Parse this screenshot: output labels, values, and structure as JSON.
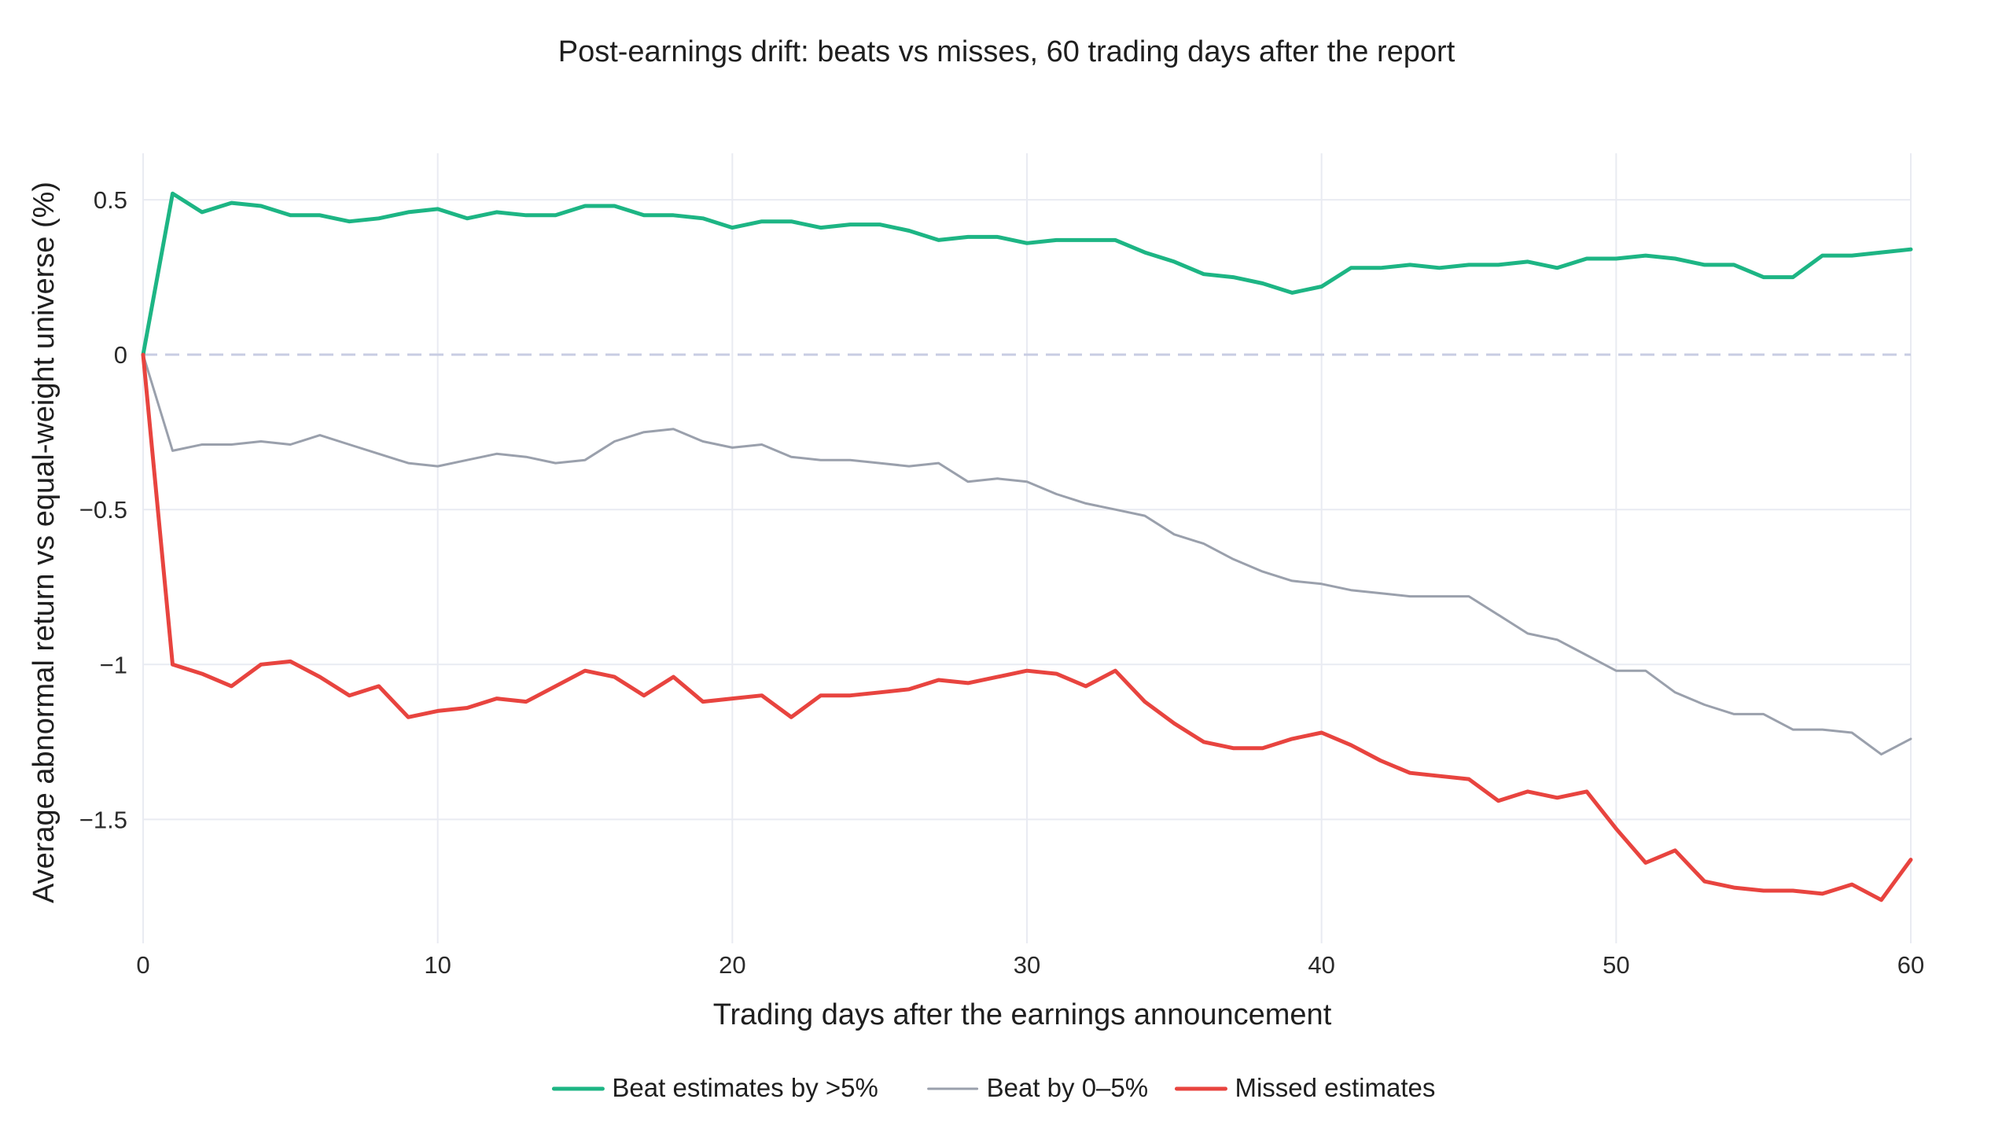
{
  "chart_data": {
    "type": "line",
    "title": "Post-earnings drift: beats vs misses, 60 trading days after the report",
    "xlabel": "Trading days after the earnings announcement",
    "ylabel": "Average abnormal return vs equal-weight universe (%)",
    "xlim": [
      0,
      60
    ],
    "ylim": [
      -1.9,
      0.65
    ],
    "x_ticks": [
      0,
      10,
      20,
      30,
      40,
      50,
      60
    ],
    "x_tick_labels": [
      "0",
      "10",
      "20",
      "30",
      "40",
      "50",
      "60"
    ],
    "y_ticks": [
      0.5,
      0,
      -0.5,
      -1,
      -1.5
    ],
    "y_tick_labels": [
      "0.5",
      "0",
      "−0.5",
      "−1",
      "−1.5"
    ],
    "grid": true,
    "zero_line": "dashed",
    "legend_position": "bottom-center",
    "x": [
      0,
      1,
      2,
      3,
      4,
      5,
      6,
      7,
      8,
      9,
      10,
      11,
      12,
      13,
      14,
      15,
      16,
      17,
      18,
      19,
      20,
      21,
      22,
      23,
      24,
      25,
      26,
      27,
      28,
      29,
      30,
      31,
      32,
      33,
      34,
      35,
      36,
      37,
      38,
      39,
      40,
      41,
      42,
      43,
      44,
      45,
      46,
      47,
      48,
      49,
      50,
      51,
      52,
      53,
      54,
      55,
      56,
      57,
      58,
      59,
      60
    ],
    "series": [
      {
        "name": "Beat estimates by >5%",
        "color": "#1db584",
        "values": [
          0,
          0.52,
          0.46,
          0.49,
          0.48,
          0.45,
          0.45,
          0.43,
          0.44,
          0.46,
          0.47,
          0.44,
          0.46,
          0.45,
          0.45,
          0.48,
          0.48,
          0.45,
          0.45,
          0.44,
          0.41,
          0.43,
          0.43,
          0.41,
          0.42,
          0.42,
          0.4,
          0.37,
          0.38,
          0.38,
          0.36,
          0.37,
          0.37,
          0.37,
          0.33,
          0.3,
          0.26,
          0.25,
          0.23,
          0.2,
          0.22,
          0.28,
          0.28,
          0.29,
          0.28,
          0.29,
          0.29,
          0.3,
          0.28,
          0.31,
          0.31,
          0.32,
          0.31,
          0.29,
          0.29,
          0.25,
          0.25,
          0.32,
          0.32,
          0.33,
          0.34
        ]
      },
      {
        "name": "Beat by 0–5%",
        "color": "#9aa0ac",
        "values": [
          0,
          -0.31,
          -0.29,
          -0.29,
          -0.28,
          -0.29,
          -0.26,
          -0.29,
          -0.32,
          -0.35,
          -0.36,
          -0.34,
          -0.32,
          -0.33,
          -0.35,
          -0.34,
          -0.28,
          -0.25,
          -0.24,
          -0.28,
          -0.3,
          -0.29,
          -0.33,
          -0.34,
          -0.34,
          -0.35,
          -0.36,
          -0.35,
          -0.41,
          -0.4,
          -0.41,
          -0.45,
          -0.48,
          -0.5,
          -0.52,
          -0.58,
          -0.61,
          -0.66,
          -0.7,
          -0.73,
          -0.74,
          -0.76,
          -0.77,
          -0.78,
          -0.78,
          -0.78,
          -0.84,
          -0.9,
          -0.92,
          -0.97,
          -1.02,
          -1.02,
          -1.09,
          -1.13,
          -1.16,
          -1.16,
          -1.21,
          -1.21,
          -1.22,
          -1.29,
          -1.24
        ]
      },
      {
        "name": "Missed estimates",
        "color": "#e8443f",
        "values": [
          0,
          -1.0,
          -1.03,
          -1.07,
          -1.0,
          -0.99,
          -1.04,
          -1.1,
          -1.07,
          -1.17,
          -1.15,
          -1.14,
          -1.11,
          -1.12,
          -1.07,
          -1.02,
          -1.04,
          -1.1,
          -1.04,
          -1.12,
          -1.11,
          -1.1,
          -1.17,
          -1.1,
          -1.1,
          -1.09,
          -1.08,
          -1.05,
          -1.06,
          -1.04,
          -1.02,
          -1.03,
          -1.07,
          -1.02,
          -1.12,
          -1.19,
          -1.25,
          -1.27,
          -1.27,
          -1.24,
          -1.22,
          -1.26,
          -1.31,
          -1.35,
          -1.36,
          -1.37,
          -1.44,
          -1.41,
          -1.43,
          -1.41,
          -1.53,
          -1.64,
          -1.6,
          -1.7,
          -1.72,
          -1.73,
          -1.73,
          -1.74,
          -1.71,
          -1.76,
          -1.63
        ]
      }
    ]
  }
}
